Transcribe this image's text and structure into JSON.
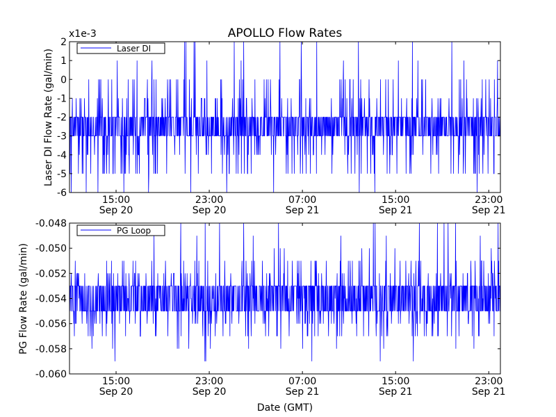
{
  "chart_data": [
    {
      "type": "line",
      "title": "APOLLO Flow Rates",
      "offset_label": "x1e-3",
      "ylabel": "Laser DI Flow Rate (gal/min)",
      "xlabel": "",
      "ylim": [
        -6,
        2
      ],
      "yticks": [
        "2",
        "1",
        "0",
        "-1",
        "-2",
        "-3",
        "-4",
        "-5",
        "-6"
      ],
      "ytick_values": [
        2,
        1,
        0,
        -1,
        -2,
        -3,
        -4,
        -5,
        -6
      ],
      "xlim": [
        "2013-09-20 11:00",
        "2013-09-22 00:00"
      ],
      "xticks": [
        {
          "time": "15:00",
          "date": "Sep 20",
          "at": "2013-09-20 15:00"
        },
        {
          "time": "23:00",
          "date": "Sep 20",
          "at": "2013-09-20 23:00"
        },
        {
          "time": "07:00",
          "date": "Sep 21",
          "at": "2013-09-21 07:00"
        },
        {
          "time": "15:00",
          "date": "Sep 21",
          "at": "2013-09-21 15:00"
        },
        {
          "time": "23:00",
          "date": "Sep 21",
          "at": "2013-09-21 23:00"
        }
      ],
      "legend": {
        "placement": "top-left",
        "entries": [
          "Laser DI"
        ]
      },
      "grid": false,
      "series": [
        {
          "name": "Laser DI",
          "color": "#0000ff",
          "center": -2.5,
          "typical_min": -3,
          "typical_max": -2,
          "spike_min": -6,
          "spike_max": 2,
          "resolution": 1
        }
      ]
    },
    {
      "type": "line",
      "title": "",
      "ylabel": "PG Flow Rate (gal/min)",
      "xlabel": "Date (GMT)",
      "ylim": [
        -0.06,
        -0.048
      ],
      "yticks": [
        "-0.048",
        "-0.050",
        "-0.052",
        "-0.054",
        "-0.056",
        "-0.058",
        "-0.060"
      ],
      "ytick_values": [
        -0.048,
        -0.05,
        -0.052,
        -0.054,
        -0.056,
        -0.058,
        -0.06
      ],
      "xlim": [
        "2013-09-20 11:00",
        "2013-09-22 00:00"
      ],
      "xticks": [
        {
          "time": "15:00",
          "date": "Sep 20",
          "at": "2013-09-20 15:00"
        },
        {
          "time": "23:00",
          "date": "Sep 20",
          "at": "2013-09-20 23:00"
        },
        {
          "time": "07:00",
          "date": "Sep 21",
          "at": "2013-09-21 07:00"
        },
        {
          "time": "15:00",
          "date": "Sep 21",
          "at": "2013-09-21 15:00"
        },
        {
          "time": "23:00",
          "date": "Sep 21",
          "at": "2013-09-21 23:00"
        }
      ],
      "legend": {
        "placement": "top-left",
        "entries": [
          "PG Loop"
        ]
      },
      "grid": false,
      "series": [
        {
          "name": "PG Loop",
          "color": "#0000ff",
          "center": -0.054,
          "typical_min": -0.055,
          "typical_max": -0.053,
          "spike_min": -0.059,
          "spike_max": -0.048,
          "resolution": 0.001
        }
      ]
    }
  ]
}
